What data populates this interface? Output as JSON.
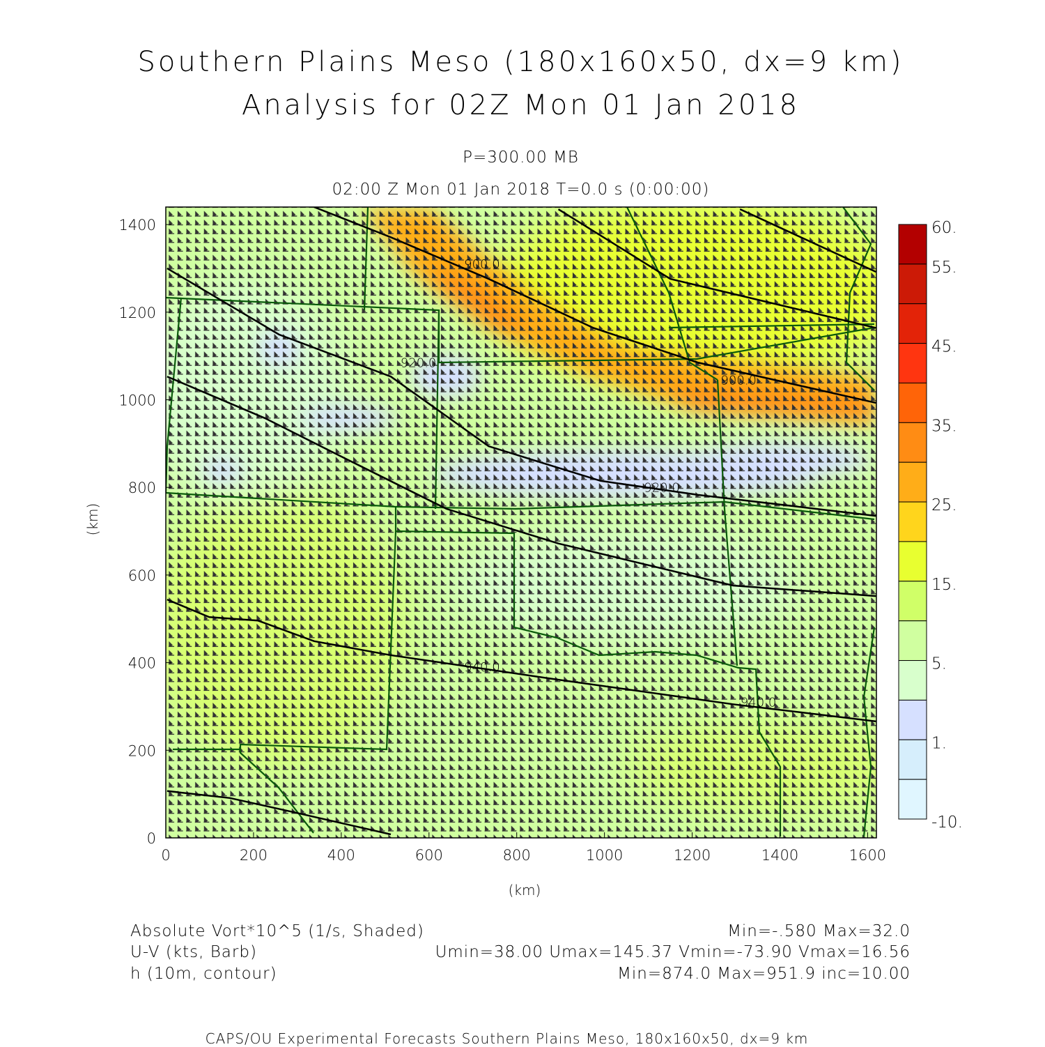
{
  "header": {
    "title_line1": "Southern Plains Meso (180x160x50, dx=9 km)",
    "title_line2": "Analysis for 02Z Mon 01 Jan 2018",
    "level": "P=300.00 MB",
    "valid_time": "02:00 Z Mon 01 Jan 2018    T=0.0 s (0:00:00)"
  },
  "legend_info": {
    "shaded_label": "Absolute Vort*10^5 (1/s, Shaded)",
    "shaded_stats": "Min=-.580 Max=32.0",
    "barb_label": "U-V (kts, Barb)",
    "barb_stats": "Umin=38.00 Umax=145.37 Vmin=-73.90 Vmax=16.56",
    "contour_label": "h (10m, contour)",
    "contour_stats": "Min=874.0 Max=951.9 inc=10.00"
  },
  "footer": "CAPS/OU Experimental Forecasts  Southern Plains Meso, 180x160x50, dx=9 km",
  "chart_data": {
    "type": "heatmap",
    "xlabel": "(km)",
    "ylabel": "(km)",
    "xlim": [
      0,
      1620
    ],
    "ylim": [
      0,
      1440
    ],
    "xticks": [
      0,
      200,
      400,
      600,
      800,
      1000,
      1200,
      1400,
      1600
    ],
    "yticks": [
      0,
      200,
      400,
      600,
      800,
      1000,
      1200,
      1400
    ],
    "colorbar": {
      "colors": [
        "#b30000",
        "#cc1a06",
        "#e32308",
        "#ff3510",
        "#ff6408",
        "#ff8c14",
        "#ffad18",
        "#ffd51c",
        "#e8ff30",
        "#d0ff68",
        "#d0ffa0",
        "#d8ffcc",
        "#d6e0ff",
        "#d6eefc",
        "#e0f6ff"
      ],
      "labels": [
        {
          "boundary": 0,
          "text": "60."
        },
        {
          "boundary": 1,
          "text": "55."
        },
        {
          "boundary": 3,
          "text": "45."
        },
        {
          "boundary": 5,
          "text": "35."
        },
        {
          "boundary": 7,
          "text": "25."
        },
        {
          "boundary": 9,
          "text": "15."
        },
        {
          "boundary": 11,
          "text": "5."
        },
        {
          "boundary": 13,
          "text": "1."
        },
        {
          "boundary": 15,
          "text": "-10."
        }
      ]
    },
    "contours": [
      {
        "label": "900.0",
        "label_at": [
          680,
          1300
        ],
        "points": [
          [
            338,
            1440
          ],
          [
            513,
            1371
          ],
          [
            736,
            1276
          ],
          [
            975,
            1164
          ],
          [
            1213,
            1085
          ],
          [
            1619,
            993
          ]
        ]
      },
      {
        "label": "900.0",
        "label_at": [
          1265,
          1035
        ],
        "points": [
          [
            895,
            1435
          ],
          [
            1150,
            1276
          ],
          [
            1619,
            1164
          ]
        ]
      },
      {
        "label": "",
        "points": [
          [
            1309,
            1435
          ],
          [
            1619,
            1292
          ]
        ]
      },
      {
        "label": "920.0",
        "label_at": [
          535,
          1075
        ],
        "points": [
          [
            3,
            1300
          ],
          [
            258,
            1149
          ],
          [
            513,
            1053
          ],
          [
            736,
            894
          ],
          [
            991,
            815
          ],
          [
            1213,
            783
          ],
          [
            1619,
            735
          ]
        ]
      },
      {
        "label": "920.0",
        "label_at": [
          1090,
          790
        ],
        "points": [
          [
            3,
            1053
          ],
          [
            226,
            958
          ],
          [
            417,
            862
          ],
          [
            640,
            751
          ],
          [
            895,
            672
          ],
          [
            1293,
            576
          ],
          [
            1619,
            552
          ]
        ]
      },
      {
        "label": "940.0",
        "label_at": [
          680,
          380
        ],
        "points": [
          [
            3,
            544
          ],
          [
            99,
            504
          ],
          [
            210,
            496
          ],
          [
            338,
            449
          ],
          [
            513,
            417
          ],
          [
            895,
            361
          ],
          [
            1293,
            305
          ],
          [
            1619,
            266
          ]
        ]
      },
      {
        "label": "940.0",
        "label_at": [
          1310,
          300
        ],
        "points": [
          [
            3,
            107
          ],
          [
            146,
            91
          ],
          [
            290,
            59
          ],
          [
            513,
            8
          ]
        ]
      }
    ]
  }
}
